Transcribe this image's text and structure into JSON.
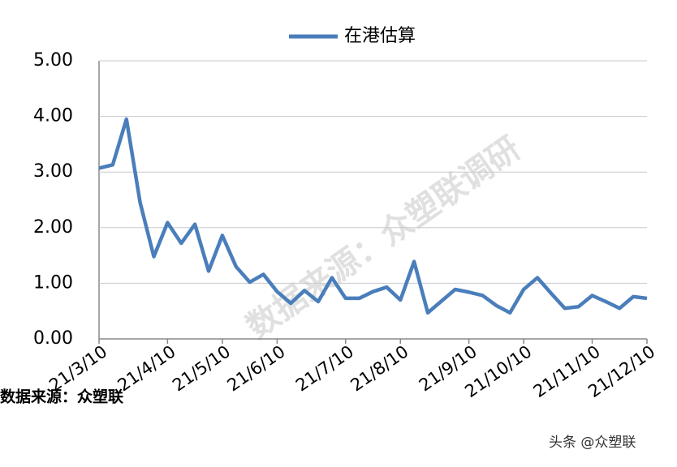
{
  "chart_data": {
    "type": "line",
    "categories": [
      "21/3/10",
      null,
      null,
      null,
      null,
      "21/4/10",
      null,
      null,
      null,
      "21/5/10",
      null,
      null,
      null,
      "21/6/10",
      null,
      null,
      null,
      null,
      "21/7/10",
      null,
      null,
      null,
      "21/8/10",
      null,
      null,
      null,
      null,
      "21/9/10",
      null,
      null,
      null,
      "21/10/10",
      null,
      null,
      null,
      null,
      "21/11/10",
      null,
      null,
      null,
      "21/12/10"
    ],
    "series": [
      {
        "name": "在港估算",
        "color": "#4a7ebb",
        "values": [
          3.07,
          3.13,
          3.95,
          2.45,
          1.48,
          2.09,
          1.72,
          2.06,
          1.22,
          1.86,
          1.3,
          1.02,
          1.16,
          0.85,
          0.64,
          0.87,
          0.67,
          1.1,
          0.73,
          0.73,
          0.85,
          0.93,
          0.7,
          1.39,
          0.47,
          0.68,
          0.89,
          0.84,
          0.78,
          0.6,
          0.47,
          0.89,
          1.1,
          0.82,
          0.55,
          0.58,
          0.78,
          0.67,
          0.55,
          0.76,
          0.73
        ]
      }
    ],
    "ylim": [
      0,
      5
    ],
    "yticks": [
      {
        "value": 0,
        "label": "0.00"
      },
      {
        "value": 1,
        "label": "1.00"
      },
      {
        "value": 2,
        "label": "2.00"
      },
      {
        "value": 3,
        "label": "3.00"
      },
      {
        "value": 4,
        "label": "4.00"
      },
      {
        "value": 5,
        "label": "5.00"
      }
    ],
    "grid": true,
    "legend": "top",
    "watermark": "数据来源：众塑联调研",
    "source_note": "数据来源：众塑联",
    "credit": "头条 @众塑联"
  }
}
